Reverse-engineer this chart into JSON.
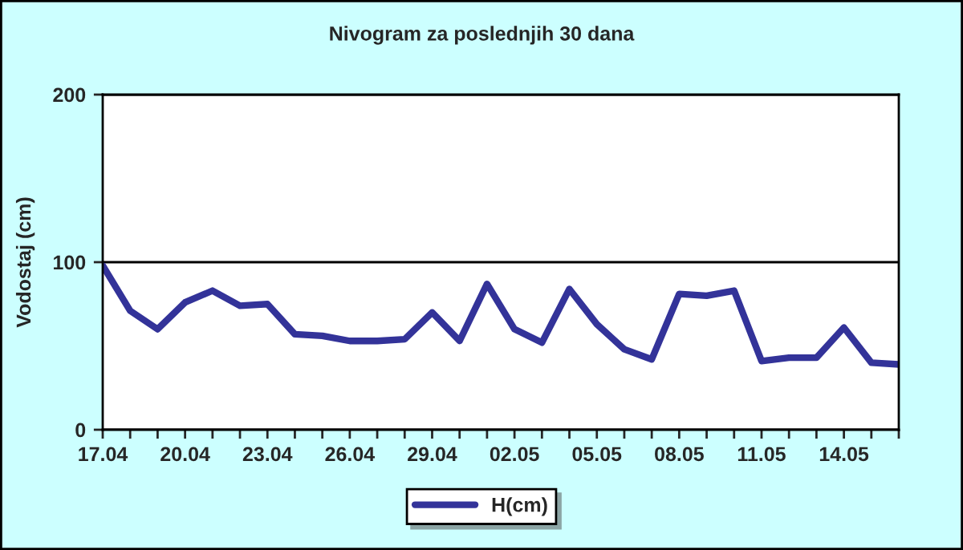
{
  "chart_data": {
    "type": "line",
    "title": "Nivogram za poslednjih 30 dana",
    "ylabel": "Vodostaj (cm)",
    "categories": [
      "17.04",
      null,
      null,
      "20.04",
      null,
      null,
      "23.04",
      null,
      null,
      "26.04",
      null,
      null,
      "29.04",
      null,
      null,
      "02.05",
      null,
      null,
      "05.05",
      null,
      null,
      "08.05",
      null,
      null,
      "11.05",
      null,
      null,
      "14.05",
      null,
      null
    ],
    "series": [
      {
        "name": "H(cm)",
        "color": "#333399",
        "values": [
          98,
          71,
          60,
          76,
          83,
          74,
          75,
          57,
          56,
          53,
          53,
          54,
          70,
          53,
          87,
          60,
          52,
          84,
          63,
          48,
          42,
          81,
          80,
          83,
          41,
          43,
          43,
          61,
          40,
          39
        ]
      }
    ],
    "ylim": [
      0,
      200
    ],
    "yticks": [
      0,
      100,
      200
    ],
    "grid": "y",
    "legend": "bottom",
    "marker": "none",
    "line_style": "solid"
  }
}
